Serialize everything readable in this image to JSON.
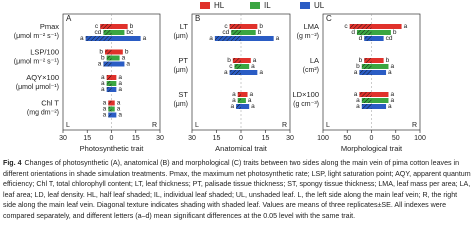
{
  "legend": [
    {
      "name": "HL",
      "color": "#e0312b"
    },
    {
      "name": "IL",
      "color": "#3aa641"
    },
    {
      "name": "UL",
      "color": "#2a5cc4"
    }
  ],
  "side_labels": [
    "L",
    "R"
  ],
  "chart_data": [
    {
      "type": "bar",
      "orientation": "horizontal",
      "panel": "A",
      "categories": [
        "Pmax",
        "LSP/100",
        "AQY×100",
        "Chl T"
      ],
      "units": [
        "(μmol m⁻² s⁻¹)",
        "(μmol m⁻² s⁻¹)",
        "(μmol μmol⁻¹)",
        "(mg dm⁻²)"
      ],
      "xlim": [
        -30,
        30
      ],
      "xticks": [
        {
          "value": -30,
          "label": "30"
        },
        {
          "value": -15,
          "label": "15"
        },
        0,
        15,
        30
      ],
      "xlabel": "Photosynthetic trait",
      "series": [
        {
          "left": [
            -7,
            -4,
            -3,
            -2
          ],
          "right": [
            10,
            7,
            3,
            2
          ],
          "left_letters": [
            "c",
            "b",
            "a",
            "a"
          ],
          "right_letters": [
            "b",
            "b",
            "a",
            "a"
          ]
        },
        {
          "left": [
            -5,
            -3,
            -3,
            -2
          ],
          "right": [
            8,
            5,
            3,
            2
          ],
          "left_letters": [
            "cd",
            "b",
            "a",
            "a"
          ],
          "right_letters": [
            "bc",
            "a",
            "a",
            "a"
          ]
        },
        {
          "left": [
            -16,
            -5,
            -3,
            -2
          ],
          "right": [
            18,
            8,
            3,
            3
          ],
          "left_letters": [
            "a",
            "a",
            "a",
            "a"
          ],
          "right_letters": [
            "a",
            "a",
            "a",
            "a"
          ]
        }
      ]
    },
    {
      "type": "bar",
      "orientation": "horizontal",
      "panel": "B",
      "categories": [
        "LT",
        "PT",
        "ST"
      ],
      "units": [
        "(μm)",
        "(μm)",
        "(μm)"
      ],
      "xlim": [
        -30,
        30
      ],
      "xticks": [
        {
          "value": -30,
          "label": "30"
        },
        {
          "value": -15,
          "label": "15"
        },
        0,
        15,
        30
      ],
      "xlabel": "Anatomical trait",
      "series": [
        {
          "left": [
            -7,
            -5,
            -2
          ],
          "right": [
            10,
            6,
            4
          ],
          "left_letters": [
            "c",
            "b",
            "a"
          ],
          "right_letters": [
            "b",
            "a",
            "a"
          ]
        },
        {
          "left": [
            -6,
            -4,
            -2
          ],
          "right": [
            9,
            5,
            3
          ],
          "left_letters": [
            "cd",
            "c",
            "a"
          ],
          "right_letters": [
            "b",
            "a",
            "a"
          ]
        },
        {
          "left": [
            -16,
            -7,
            -3
          ],
          "right": [
            20,
            10,
            5
          ],
          "left_letters": [
            "a",
            "a",
            "a"
          ],
          "right_letters": [
            "a",
            "a",
            "a"
          ]
        }
      ]
    },
    {
      "type": "bar",
      "orientation": "horizontal",
      "panel": "C",
      "categories": [
        "LMA",
        "LA",
        "LD×100"
      ],
      "units": [
        "(g m⁻²)",
        "(cm²)",
        "(g cm⁻³)"
      ],
      "xlim": [
        -100,
        100
      ],
      "xticks": [
        {
          "value": -100,
          "label": "100"
        },
        {
          "value": -50,
          "label": "50"
        },
        0,
        50,
        100
      ],
      "xlabel": "Morphological trait",
      "series": [
        {
          "left": [
            -45,
            -15,
            -25
          ],
          "right": [
            62,
            25,
            35
          ],
          "left_letters": [
            "c",
            "b",
            "a"
          ],
          "right_letters": [
            "a",
            "b",
            "a"
          ]
        },
        {
          "left": [
            -30,
            -20,
            -20
          ],
          "right": [
            40,
            35,
            35
          ],
          "left_letters": [
            "d",
            "b",
            "a"
          ],
          "right_letters": [
            "b",
            "a",
            "a"
          ]
        },
        {
          "left": [
            -15,
            -25,
            -20
          ],
          "right": [
            25,
            30,
            30
          ],
          "left_letters": [
            "d",
            "a",
            "a"
          ],
          "right_letters": [
            "cd",
            "a",
            "a"
          ]
        }
      ]
    }
  ],
  "caption": {
    "label": "Fig. 4",
    "text": "Changes of photosynthetic (A), anatomical (B) and morphological (C) traits between two sides along the main vein of pima cotton leaves in different orientations in shade simulation treatments. Pmax, the maximum net photosynthetic rate; LSP, light saturation point; AQY, apparent quantum efficiency; Chl T, total chlorophyll content; LT, leaf thickness; PT, palisade tissue thickness; ST, spongy tissue thickness; LMA, leaf mass per area; LA, leaf area; LD, leaf density. HL, half leaf shaded; IL, individual leaf shaded; UL, unshaded leaf. L, the left side along the main leaf vein; R, the right side along the main leaf vein. Diagonal texture indicates shading with shaded leaf. Values are means of three replicates±SE. All indexes were compared separately, and different letters (a–d) mean significant differences at the 0.05 level with the same trait."
  }
}
